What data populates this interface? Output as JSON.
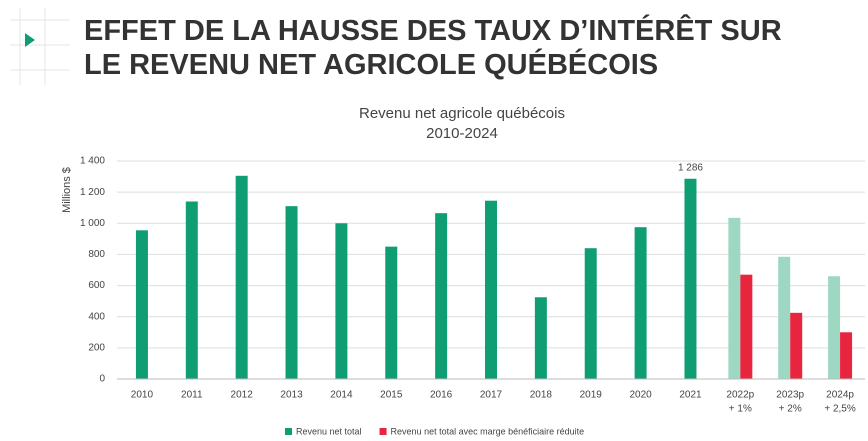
{
  "header": {
    "title": [
      "EFFET DE LA HAUSSE DES TAUX D’INTÉRÊT SUR",
      "LE REVENU NET AGRICOLE QUÉBÉCOIS"
    ]
  },
  "chart_data": {
    "type": "bar",
    "title": "Revenu net agricole québécois",
    "subtitle": "2010-2024",
    "y_label": "Millions $",
    "categories": [
      "2010",
      "2011",
      "2012",
      "2013",
      "2014",
      "2015",
      "2016",
      "2017",
      "2018",
      "2019",
      "2020",
      "2021",
      "2022p",
      "2023p",
      "2024p"
    ],
    "category_notes": [
      null,
      null,
      null,
      null,
      null,
      null,
      null,
      null,
      null,
      null,
      null,
      null,
      "+ 1%",
      "+ 2%",
      "+ 2,5%"
    ],
    "series": [
      {
        "name": "Revenu net total",
        "color": "#0f9e74",
        "colors": [
          "#0f9e74",
          "#0f9e74",
          "#0f9e74",
          "#0f9e74",
          "#0f9e74",
          "#0f9e74",
          "#0f9e74",
          "#0f9e74",
          "#0f9e74",
          "#0f9e74",
          "#0f9e74",
          "#0f9e74",
          "#9fd8c2",
          "#9fd8c2",
          "#9fd8c2"
        ],
        "values": [
          955,
          1140,
          1305,
          1110,
          1000,
          850,
          1065,
          1145,
          525,
          840,
          975,
          1286,
          1035,
          785,
          660
        ],
        "value_labels": [
          null,
          null,
          null,
          null,
          null,
          null,
          null,
          null,
          null,
          null,
          null,
          "1 286",
          null,
          null,
          null
        ]
      },
      {
        "name": "Revenu net total avec marge bénéficiaire réduite",
        "color": "#e8253e",
        "values": [
          null,
          null,
          null,
          null,
          null,
          null,
          null,
          null,
          null,
          null,
          null,
          null,
          670,
          425,
          300
        ]
      }
    ],
    "ylim": [
      0,
      1400
    ],
    "yticks": [
      0,
      200,
      400,
      600,
      800,
      {
        "value": 1000,
        "label": "1 000"
      },
      {
        "value": 1200,
        "label": "1 200"
      },
      {
        "value": 1400,
        "label": "1 400"
      }
    ],
    "grid": true,
    "legend": "bottom"
  }
}
